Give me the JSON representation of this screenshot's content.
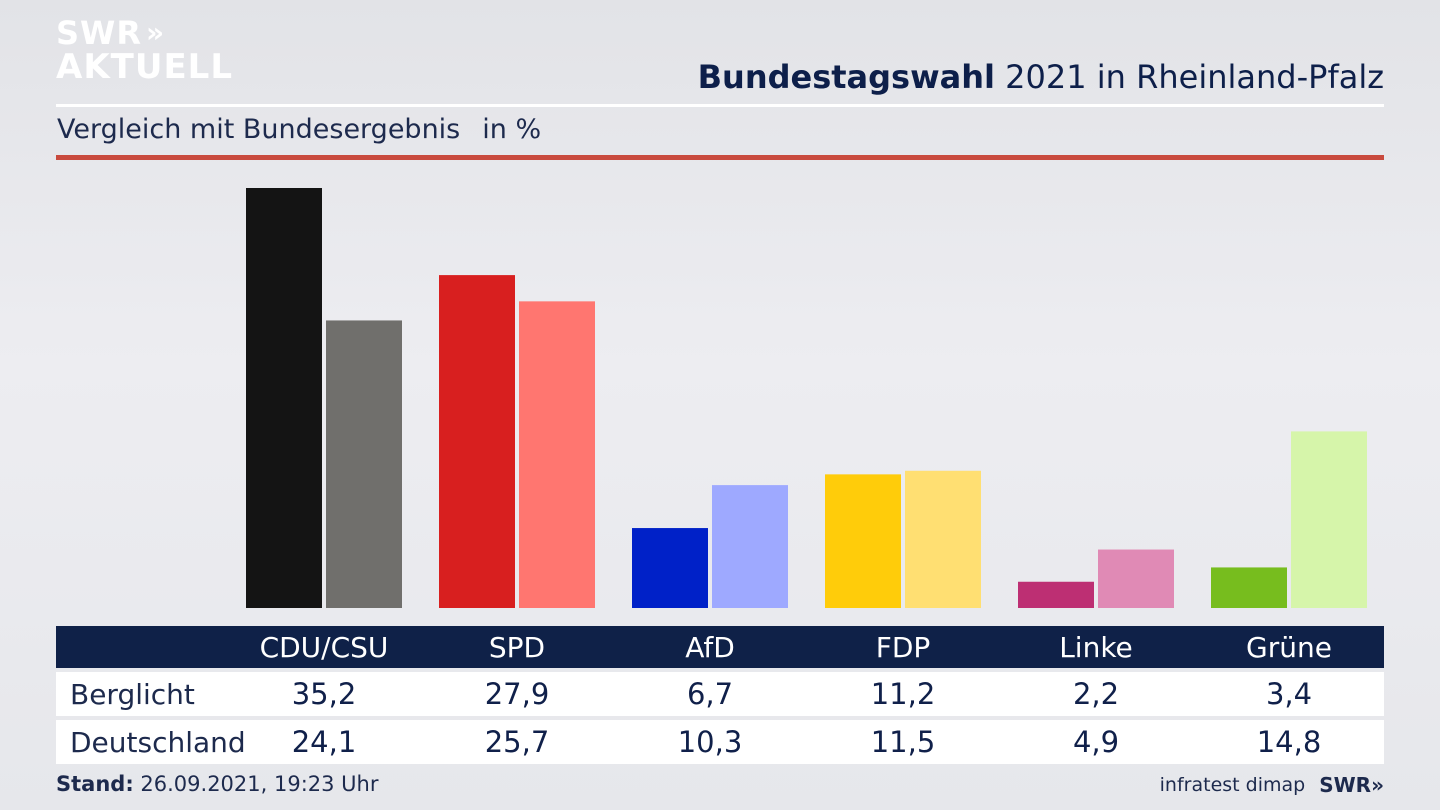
{
  "logo": {
    "line1": "SWR",
    "chevrons": "»",
    "line2": "AKTUELL"
  },
  "title": {
    "bold": "Bundestagswahl",
    "rest": " 2021 in Rheinland-Pfalz"
  },
  "subtitle": {
    "text": "Vergleich mit Bundesergebnis",
    "unit": "in %"
  },
  "table": {
    "row_labels": [
      "Berglicht",
      "Deutschland"
    ]
  },
  "footer": {
    "stand_label": "Stand:",
    "stand_value": " 26.09.2021, 19:23 Uhr",
    "source": "infratest dimap",
    "brand": "SWR»"
  },
  "chart_data": {
    "type": "bar",
    "categories": [
      "CDU/CSU",
      "SPD",
      "AfD",
      "FDP",
      "Linke",
      "Grüne"
    ],
    "series": [
      {
        "name": "Berglicht",
        "values": [
          35.2,
          27.9,
          6.7,
          11.2,
          2.2,
          3.4
        ],
        "labels": [
          "35,2",
          "27,9",
          "6,7",
          "11,2",
          "2,2",
          "3,4"
        ]
      },
      {
        "name": "Deutschland",
        "values": [
          24.1,
          25.7,
          10.3,
          11.5,
          4.9,
          14.8
        ],
        "labels": [
          "24,1",
          "25,7",
          "10,3",
          "11,5",
          "4,9",
          "14,8"
        ]
      }
    ],
    "colors": {
      "Berglicht": [
        "#141414",
        "#d81f1f",
        "#0021c8",
        "#ffcc0a",
        "#bd2f73",
        "#77bd1e"
      ],
      "Deutschland": [
        "#706f6c",
        "#ff7670",
        "#9ea9ff",
        "#ffdf72",
        "#e08ab5",
        "#d6f5aa"
      ]
    },
    "ylim": [
      0,
      35.2
    ],
    "grid": false,
    "legend": "none"
  }
}
